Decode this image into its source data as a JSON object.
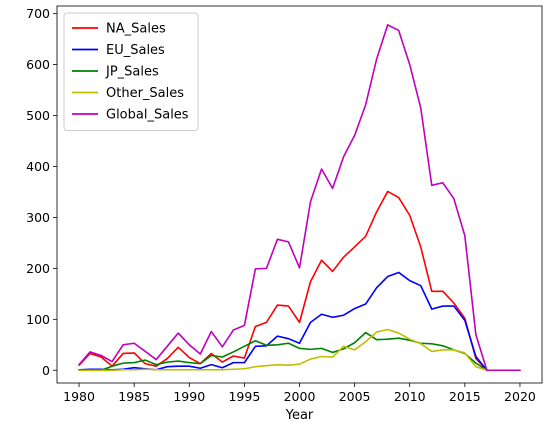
{
  "chart_data": {
    "type": "line",
    "title": "",
    "xlabel": "Year",
    "ylabel": "",
    "xlim": [
      1978,
      2022
    ],
    "ylim": [
      -25,
      715
    ],
    "xticks": [
      1980,
      1985,
      1990,
      1995,
      2000,
      2005,
      2010,
      2015,
      2020
    ],
    "yticks": [
      0,
      100,
      200,
      300,
      400,
      500,
      600,
      700
    ],
    "grid": false,
    "legend": "top-left",
    "x": [
      1980,
      1981,
      1982,
      1983,
      1984,
      1985,
      1986,
      1987,
      1988,
      1989,
      1990,
      1991,
      1992,
      1993,
      1994,
      1995,
      1996,
      1997,
      1998,
      1999,
      2000,
      2001,
      2002,
      2003,
      2004,
      2005,
      2006,
      2007,
      2008,
      2009,
      2010,
      2011,
      2012,
      2013,
      2014,
      2015,
      2016,
      2017,
      2018,
      2019,
      2020
    ],
    "series": [
      {
        "name": "NA_Sales",
        "color": "#ff0000",
        "values": [
          10,
          33,
          26,
          8,
          33,
          34,
          13,
          8,
          23,
          45,
          25,
          13,
          33,
          16,
          28,
          24,
          86,
          94,
          128,
          126,
          94,
          174,
          216,
          194,
          222,
          242,
          263,
          311,
          351,
          339,
          304,
          242,
          155,
          155,
          132,
          102,
          23,
          0,
          0,
          0,
          0
        ]
      },
      {
        "name": "EU_Sales",
        "color": "#0000ff",
        "values": [
          1,
          2,
          2,
          1,
          2,
          5,
          3,
          1,
          7,
          8,
          8,
          4,
          11,
          5,
          15,
          15,
          47,
          48,
          67,
          62,
          53,
          94,
          110,
          104,
          108,
          121,
          130,
          162,
          184,
          192,
          176,
          166,
          120,
          126,
          126,
          98,
          27,
          0,
          0,
          0,
          0
        ]
      },
      {
        "name": "JP_Sales",
        "color": "#008000",
        "values": [
          0,
          0,
          0,
          8,
          14,
          15,
          20,
          11,
          16,
          18,
          15,
          13,
          29,
          26,
          36,
          47,
          58,
          49,
          50,
          53,
          43,
          41,
          43,
          35,
          42,
          54,
          74,
          60,
          61,
          63,
          59,
          53,
          52,
          48,
          40,
          33,
          14,
          0,
          0,
          0,
          0
        ]
      },
      {
        "name": "Other_Sales",
        "color": "#bfbf00",
        "values": [
          0,
          0,
          0,
          0,
          1,
          1,
          2,
          1,
          1,
          1,
          1,
          1,
          1,
          1,
          2,
          3,
          7,
          9,
          11,
          10,
          12,
          22,
          27,
          26,
          47,
          40,
          56,
          75,
          80,
          73,
          61,
          52,
          37,
          40,
          40,
          34,
          7,
          0,
          0,
          0,
          0
        ]
      },
      {
        "name": "Global_Sales",
        "color": "#bf00bf",
        "values": [
          11,
          36,
          29,
          17,
          50,
          53,
          37,
          21,
          47,
          73,
          50,
          32,
          76,
          46,
          79,
          88,
          199,
          200,
          257,
          252,
          201,
          331,
          395,
          357,
          419,
          461,
          521,
          611,
          678,
          667,
          600,
          515,
          363,
          368,
          337,
          264,
          70,
          0,
          0,
          0,
          0
        ]
      }
    ]
  }
}
